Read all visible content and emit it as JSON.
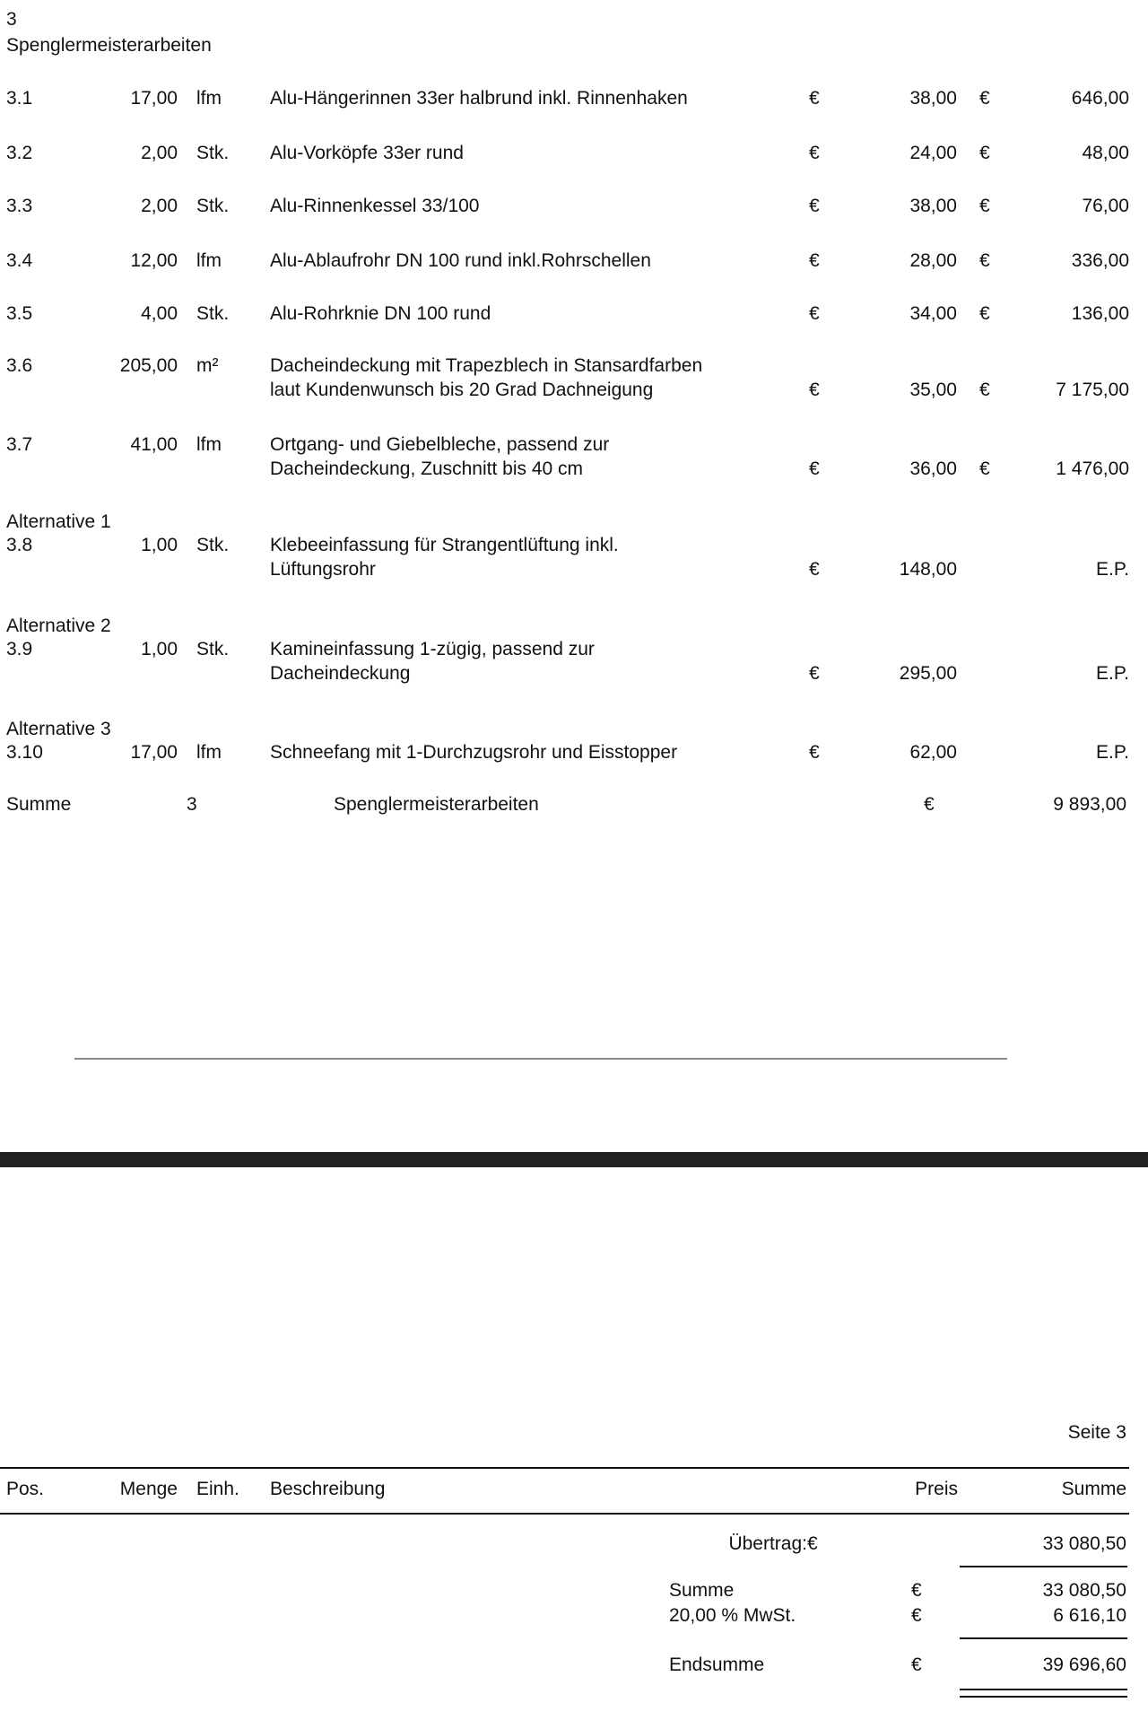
{
  "section": {
    "number": "3",
    "title": "Spenglermeisterarbeiten"
  },
  "currency": "€",
  "items": [
    {
      "pos": "3.1",
      "qty": "17,00",
      "unit": "lfm",
      "desc": [
        "Alu-Hängerinnen 33er halbrund inkl. Rinnenhaken"
      ],
      "price": "38,00",
      "total": "646,00"
    },
    {
      "pos": "3.2",
      "qty": "2,00",
      "unit": "Stk.",
      "desc": [
        "Alu-Vorköpfe 33er rund"
      ],
      "price": "24,00",
      "total": "48,00"
    },
    {
      "pos": "3.3",
      "qty": "2,00",
      "unit": "Stk.",
      "desc": [
        "Alu-Rinnenkessel 33/100"
      ],
      "price": "38,00",
      "total": "76,00"
    },
    {
      "pos": "3.4",
      "qty": "12,00",
      "unit": "lfm",
      "desc": [
        "Alu-Ablaufrohr DN 100 rund inkl.Rohrschellen"
      ],
      "price": "28,00",
      "total": "336,00"
    },
    {
      "pos": "3.5",
      "qty": "4,00",
      "unit": "Stk.",
      "desc": [
        "Alu-Rohrknie DN 100 rund"
      ],
      "price": "34,00",
      "total": "136,00"
    },
    {
      "pos": "3.6",
      "qty": "205,00",
      "unit": "m²",
      "desc": [
        "Dacheindeckung mit Trapezblech in Stansardfarben",
        "laut Kundenwunsch bis 20 Grad Dachneigung"
      ],
      "price": "35,00",
      "total": "7 175,00"
    },
    {
      "pos": "3.7",
      "qty": "41,00",
      "unit": "lfm",
      "desc": [
        "Ortgang- und Giebelbleche, passend zur",
        "Dacheindeckung, Zuschnitt bis 40 cm"
      ],
      "price": "36,00",
      "total": "1 476,00"
    },
    {
      "alt": "Alternative 1",
      "pos": "3.8",
      "qty": "1,00",
      "unit": "Stk.",
      "desc": [
        "Klebeeinfassung für Strangentlüftung inkl.",
        "Lüftungsrohr"
      ],
      "price": "148,00",
      "total": "E.P."
    },
    {
      "alt": "Alternative 2",
      "pos": "3.9",
      "qty": "1,00",
      "unit": "Stk.",
      "desc": [
        "Kamineinfassung 1-zügig, passend zur",
        "Dacheindeckung"
      ],
      "price": "295,00",
      "total": "E.P."
    },
    {
      "alt": "Alternative 3",
      "pos": "3.10",
      "qty": "17,00",
      "unit": "lfm",
      "desc": [
        "Schneefang mit 1-Durchzugsrohr und Eisstopper"
      ],
      "price": "62,00",
      "total": "E.P."
    }
  ],
  "section_sum": {
    "label": "Summe",
    "number": "3",
    "title": "Spenglermeisterarbeiten",
    "total": "9 893,00"
  },
  "page_label": "Seite 3",
  "header": {
    "pos": "Pos.",
    "qty": "Menge",
    "unit": "Einh.",
    "desc": "Beschreibung",
    "price": "Preis",
    "total": "Summe"
  },
  "totals": {
    "carry_label": "Übertrag:",
    "carry": "33 080,50",
    "sum_label": "Summe",
    "sum": "33 080,50",
    "vat_label": "20,00 % MwSt.",
    "vat": "6 616,10",
    "final_label": "Endsumme",
    "final": "39 696,60"
  }
}
